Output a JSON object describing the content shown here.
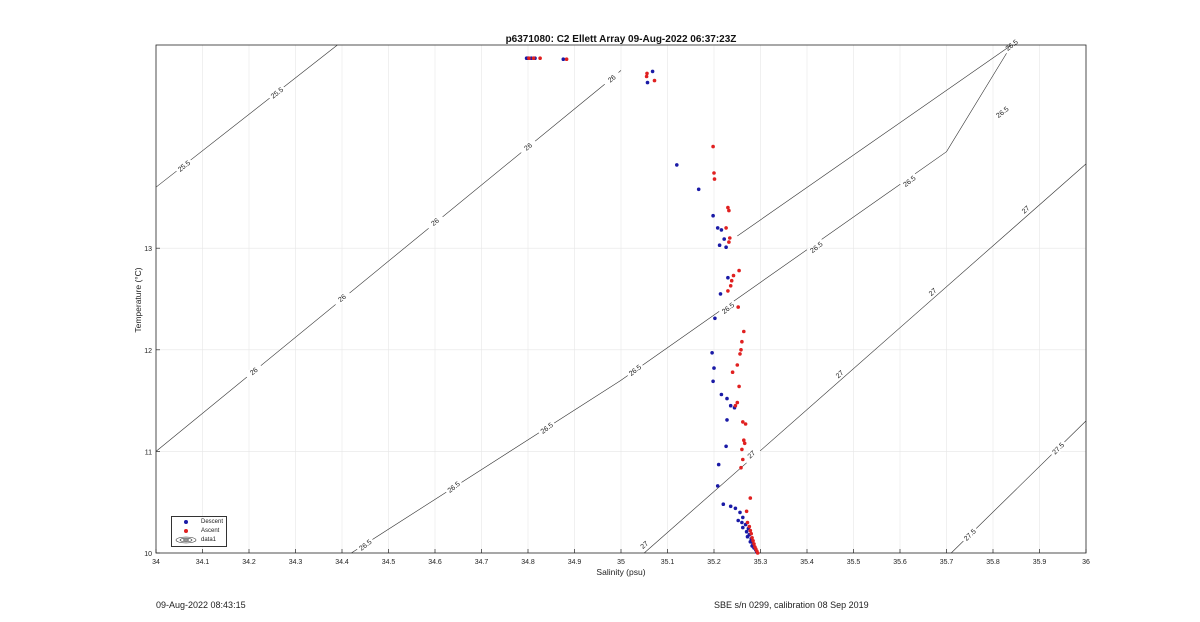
{
  "chart_data": {
    "type": "scatter",
    "title": "p6371080: C2 Ellett Array 09-Aug-2022 06:37:23Z",
    "xlabel": "Salinity (psu)",
    "ylabel": "Temperature (°C)",
    "xlim": [
      34,
      36
    ],
    "ylim": [
      10,
      15
    ],
    "xticks": [
      "34",
      "34.1",
      "34.2",
      "34.3",
      "34.4",
      "34.5",
      "34.6",
      "34.7",
      "34.8",
      "34.9",
      "35",
      "35.1",
      "35.2",
      "35.3",
      "35.4",
      "35.5",
      "35.6",
      "35.7",
      "35.8",
      "35.9",
      "36"
    ],
    "yticks": [
      "10",
      "11",
      "12",
      "13"
    ],
    "grid": true,
    "legend_position": "bottom-left",
    "series": [
      {
        "name": "Descent",
        "color": "#1a1aa6",
        "points": [
          [
            34.797,
            14.87
          ],
          [
            34.8,
            14.87
          ],
          [
            34.807,
            14.87
          ],
          [
            34.815,
            14.87
          ],
          [
            34.876,
            14.86
          ],
          [
            35.068,
            14.74
          ],
          [
            35.057,
            14.63
          ],
          [
            35.12,
            13.82
          ],
          [
            35.167,
            13.58
          ],
          [
            35.198,
            13.32
          ],
          [
            35.208,
            13.2
          ],
          [
            35.216,
            13.18
          ],
          [
            35.222,
            13.09
          ],
          [
            35.212,
            13.03
          ],
          [
            35.226,
            13.01
          ],
          [
            35.23,
            12.71
          ],
          [
            35.214,
            12.55
          ],
          [
            35.202,
            12.31
          ],
          [
            35.196,
            11.97
          ],
          [
            35.2,
            11.82
          ],
          [
            35.198,
            11.69
          ],
          [
            35.216,
            11.56
          ],
          [
            35.228,
            11.52
          ],
          [
            35.236,
            11.45
          ],
          [
            35.244,
            11.43
          ],
          [
            35.228,
            11.31
          ],
          [
            35.226,
            11.05
          ],
          [
            35.21,
            10.87
          ],
          [
            35.208,
            10.66
          ],
          [
            35.22,
            10.48
          ],
          [
            35.236,
            10.46
          ],
          [
            35.246,
            10.44
          ],
          [
            35.256,
            10.4
          ],
          [
            35.262,
            10.35
          ],
          [
            35.252,
            10.32
          ],
          [
            35.26,
            10.3
          ],
          [
            35.268,
            10.28
          ],
          [
            35.262,
            10.25
          ],
          [
            35.274,
            10.24
          ],
          [
            35.27,
            10.21
          ],
          [
            35.276,
            10.18
          ],
          [
            35.272,
            10.16
          ],
          [
            35.28,
            10.14
          ],
          [
            35.278,
            10.11
          ],
          [
            35.284,
            10.09
          ],
          [
            35.282,
            10.07
          ],
          [
            35.286,
            10.05
          ],
          [
            35.29,
            10.03
          ],
          [
            35.292,
            10.01
          ]
        ]
      },
      {
        "name": "Ascent",
        "color": "#e02020",
        "points": [
          [
            34.802,
            14.87
          ],
          [
            34.812,
            14.87
          ],
          [
            34.826,
            14.87
          ],
          [
            34.883,
            14.86
          ],
          [
            35.056,
            14.72
          ],
          [
            35.055,
            14.69
          ],
          [
            35.072,
            14.65
          ],
          [
            35.198,
            14.0
          ],
          [
            35.2,
            13.74
          ],
          [
            35.201,
            13.68
          ],
          [
            35.23,
            13.4
          ],
          [
            35.232,
            13.37
          ],
          [
            35.226,
            13.2
          ],
          [
            35.234,
            13.1
          ],
          [
            35.232,
            13.06
          ],
          [
            35.254,
            12.78
          ],
          [
            35.238,
            12.68
          ],
          [
            35.236,
            12.63
          ],
          [
            35.242,
            12.73
          ],
          [
            35.23,
            12.58
          ],
          [
            35.252,
            12.42
          ],
          [
            35.264,
            12.18
          ],
          [
            35.26,
            12.08
          ],
          [
            35.258,
            12.0
          ],
          [
            35.256,
            11.96
          ],
          [
            35.25,
            11.85
          ],
          [
            35.24,
            11.78
          ],
          [
            35.254,
            11.64
          ],
          [
            35.25,
            11.48
          ],
          [
            35.246,
            11.45
          ],
          [
            35.262,
            11.29
          ],
          [
            35.268,
            11.27
          ],
          [
            35.264,
            11.11
          ],
          [
            35.266,
            11.08
          ],
          [
            35.26,
            11.02
          ],
          [
            35.262,
            10.92
          ],
          [
            35.258,
            10.84
          ],
          [
            35.278,
            10.54
          ],
          [
            35.27,
            10.41
          ],
          [
            35.272,
            10.3
          ],
          [
            35.276,
            10.26
          ],
          [
            35.278,
            10.22
          ],
          [
            35.28,
            10.19
          ],
          [
            35.282,
            10.15
          ],
          [
            35.284,
            10.12
          ],
          [
            35.286,
            10.09
          ],
          [
            35.288,
            10.06
          ],
          [
            35.29,
            10.04
          ],
          [
            35.292,
            10.02
          ],
          [
            35.294,
            10.0
          ]
        ]
      }
    ],
    "contours": {
      "name": "data1",
      "lines": [
        {
          "label": "25.5",
          "points": [
            [
              34.0,
              13.6
            ],
            [
              34.39,
              15.0
            ]
          ],
          "label_positions": [
            [
              34.06,
              13.81
            ],
            [
              34.26,
              14.53
            ]
          ]
        },
        {
          "label": "26",
          "points": [
            [
              34.0,
              11.0
            ],
            [
              34.98,
              14.67
            ],
            [
              35.0,
              14.75
            ]
          ],
          "label_positions": [
            [
              34.21,
              11.79
            ],
            [
              34.4,
              12.51
            ],
            [
              34.6,
              13.26
            ],
            [
              34.8,
              14.0
            ],
            [
              34.98,
              14.67
            ]
          ]
        },
        {
          "label": "26.5",
          "points": [
            [
              34.42,
              10.0
            ],
            [
              35.0,
              11.7
            ],
            [
              35.7,
              13.95
            ],
            [
              35.84,
              15.0
            ]
          ],
          "label_positions": [
            [
              34.45,
              10.08
            ],
            [
              34.64,
              10.65
            ],
            [
              34.84,
              11.23
            ],
            [
              35.03,
              11.8
            ],
            [
              35.23,
              12.41
            ],
            [
              35.42,
              13.01
            ],
            [
              35.62,
              13.66
            ],
            [
              35.82,
              14.34
            ],
            [
              35.84,
              15.0
            ]
          ]
        },
        {
          "label": "26.5",
          "points": [
            [
              35.25,
              13.12
            ],
            [
              35.84,
              15.0
            ]
          ],
          "label_positions": []
        },
        {
          "label": "27",
          "points": [
            [
              35.05,
              10.0
            ],
            [
              36.0,
              13.83
            ]
          ],
          "label_positions": [
            [
              35.05,
              10.08
            ],
            [
              35.28,
              10.97
            ],
            [
              35.47,
              11.76
            ],
            [
              35.67,
              12.57
            ],
            [
              35.87,
              13.38
            ]
          ]
        },
        {
          "label": "27.5",
          "points": [
            [
              35.71,
              10.0
            ],
            [
              36.0,
              11.3
            ]
          ],
          "label_positions": [
            [
              35.75,
              10.18
            ],
            [
              35.94,
              11.03
            ]
          ]
        }
      ]
    }
  },
  "legend": {
    "items": [
      {
        "label": "Descent",
        "color": "#1a1aa6"
      },
      {
        "label": "Ascent",
        "color": "#e02020"
      },
      {
        "label": "data1",
        "color": "#333333"
      }
    ]
  },
  "footer": {
    "left": "09-Aug-2022 08:43:15",
    "right": "SBE s/n 0299, calibration 08 Sep 2019"
  }
}
